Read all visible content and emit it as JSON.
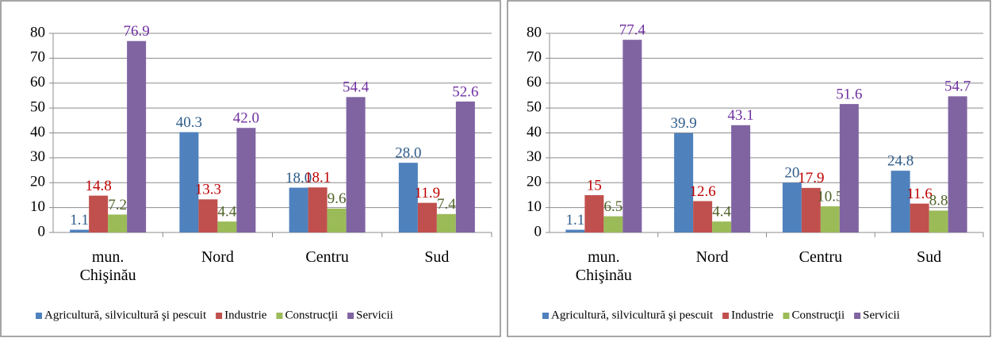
{
  "chart_data": [
    {
      "type": "bar",
      "categories": [
        "mun. Chişinău",
        "Nord",
        "Centru",
        "Sud"
      ],
      "series": [
        {
          "name": "Agricultură, silvicultură şi pescuit",
          "color": "#4f81bd",
          "label_color": "#2e5c8a",
          "values": [
            1.1,
            40.3,
            18.0,
            28.0
          ],
          "value_labels": [
            "1.1",
            "40.3",
            "18.0",
            "28.0"
          ]
        },
        {
          "name": "Industrie",
          "color": "#c0504d",
          "label_color": "#c00000",
          "values": [
            14.8,
            13.3,
            18.1,
            11.9
          ],
          "value_labels": [
            "14.8",
            "13.3",
            "18.1",
            "11.9"
          ]
        },
        {
          "name": "Construcţii",
          "color": "#9bbb59",
          "label_color": "#4f6228",
          "values": [
            7.2,
            4.4,
            9.6,
            7.4
          ],
          "value_labels": [
            "7.2",
            "4.4",
            "9.6",
            "7.4"
          ]
        },
        {
          "name": "Servicii",
          "color": "#8064a2",
          "label_color": "#7030a0",
          "values": [
            76.9,
            42.0,
            54.4,
            52.6
          ],
          "value_labels": [
            "76.9",
            "42.0",
            "54.4",
            "52.6"
          ]
        }
      ],
      "ylim": [
        0,
        80
      ],
      "yticks": [
        0,
        10,
        20,
        30,
        40,
        50,
        60,
        70,
        80
      ],
      "grid": true,
      "legend": "bottom"
    },
    {
      "type": "bar",
      "categories": [
        "mun. Chişinău",
        "Nord",
        "Centru",
        "Sud"
      ],
      "series": [
        {
          "name": "Agricultură, silvicultură şi pescuit",
          "color": "#4f81bd",
          "label_color": "#2e5c8a",
          "values": [
            1.1,
            39.9,
            20,
            24.8
          ],
          "value_labels": [
            "1.1",
            "39.9",
            "20",
            "24.8"
          ]
        },
        {
          "name": "Industrie",
          "color": "#c0504d",
          "label_color": "#c00000",
          "values": [
            15,
            12.6,
            17.9,
            11.6
          ],
          "value_labels": [
            "15",
            "12.6",
            "17.9",
            "11.6"
          ]
        },
        {
          "name": "Construcţii",
          "color": "#9bbb59",
          "label_color": "#4f6228",
          "values": [
            6.5,
            4.4,
            10.5,
            8.8
          ],
          "value_labels": [
            "6.5",
            "4.4",
            "10.5",
            "8.8"
          ]
        },
        {
          "name": "Servicii",
          "color": "#8064a2",
          "label_color": "#7030a0",
          "values": [
            77.4,
            43.1,
            51.6,
            54.7
          ],
          "value_labels": [
            "77.4",
            "43.1",
            "51.6",
            "54.7"
          ]
        }
      ],
      "ylim": [
        0,
        80
      ],
      "yticks": [
        0,
        10,
        20,
        30,
        40,
        50,
        60,
        70,
        80
      ],
      "grid": true,
      "legend": "bottom"
    }
  ]
}
